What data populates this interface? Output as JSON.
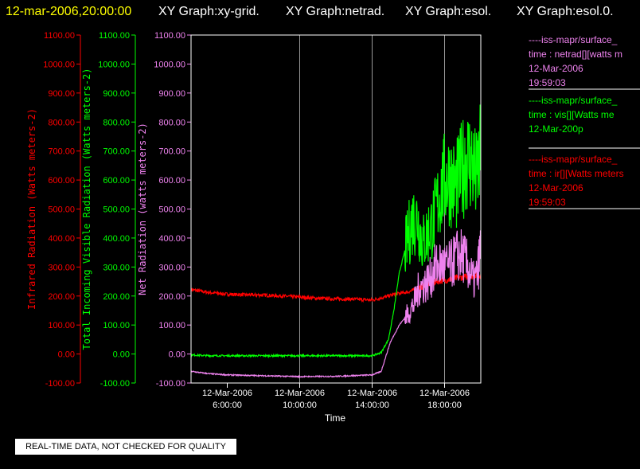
{
  "header": {
    "timestamp": "12-mar-2006,20:00:00",
    "graph_titles": [
      "XY Graph:xy-grid.",
      "XY Graph:netrad.",
      "XY Graph:esol.",
      "XY Graph:esol.0."
    ]
  },
  "colors": {
    "background": "#000000",
    "axis_frame": "#ffffff",
    "grid": "#9a9a9a",
    "ir": "#ff0000",
    "vis": "#00ff00",
    "net": "#ee82ee",
    "timestamp": "#ffff00"
  },
  "legend": [
    {
      "lines": [
        "----iss-mapr/surface_",
        "time : netrad[][watts m",
        "12-Mar-2006",
        "19:59:03"
      ],
      "color": "#ee82ee"
    },
    {
      "lines": [
        "----iss-mapr/surface_",
        "time : vis[][Watts me",
        "12-Mar-200p"
      ],
      "color": "#00ff00"
    },
    {
      "lines": [
        "----iss-mapr/surface_",
        "time : ir[][Watts meters",
        "12-Mar-2006",
        "19:59:03"
      ],
      "color": "#ff0000"
    }
  ],
  "badge": "REAL-TIME DATA, NOT CHECKED FOR QUALITY",
  "chart_data": {
    "type": "line",
    "xlabel": "Time",
    "xlim": [
      4,
      20
    ],
    "ylim": [
      -100,
      1100
    ],
    "y_ticks": [
      -100,
      0,
      100,
      200,
      300,
      400,
      500,
      600,
      700,
      800,
      900,
      1000,
      1100
    ],
    "y_tick_labels": [
      "-100.00",
      "0.00",
      "100.00",
      "200.00",
      "300.00",
      "400.00",
      "500.00",
      "600.00",
      "700.00",
      "800.00",
      "900.00",
      "1000.00",
      "1100.00"
    ],
    "x_ticks": [
      {
        "x": 6,
        "date": "12-Mar-2006",
        "time": "6:00:00"
      },
      {
        "x": 10,
        "date": "12-Mar-2006",
        "time": "10:00:00"
      },
      {
        "x": 14,
        "date": "12-Mar-2006",
        "time": "14:00:00"
      },
      {
        "x": 18,
        "date": "12-Mar-2006",
        "time": "18:00:00"
      }
    ],
    "grid_x": [
      10,
      14,
      18
    ],
    "y_axes": [
      {
        "label": "Infrared Radiation (Watts meters-2)",
        "color": "#ff0000"
      },
      {
        "label": "Total Incoming Visible Radiation (Watts meters-2)",
        "color": "#00ff00"
      },
      {
        "label": "Net Radiation (watts meters-2)",
        "color": "#ee82ee"
      }
    ],
    "series": [
      {
        "color": "#ff0000",
        "noise": 6,
        "points": [
          [
            4,
            222
          ],
          [
            5,
            212
          ],
          [
            6,
            206
          ],
          [
            7,
            204
          ],
          [
            8,
            203
          ],
          [
            9,
            200
          ],
          [
            10,
            196
          ],
          [
            11,
            192
          ],
          [
            12,
            190
          ],
          [
            13,
            189
          ],
          [
            14,
            186
          ],
          [
            14.6,
            195
          ],
          [
            15.3,
            207
          ],
          [
            16,
            214
          ],
          [
            16.5,
            225
          ],
          [
            17,
            240
          ],
          [
            17.5,
            250
          ],
          [
            18,
            255
          ],
          [
            18.5,
            260
          ],
          [
            19,
            265
          ],
          [
            19.5,
            268
          ],
          [
            20,
            272
          ]
        ]
      },
      {
        "color": "#00ff00",
        "noise": 3,
        "points": [
          [
            4,
            -3
          ],
          [
            5,
            -6
          ],
          [
            6,
            -6
          ],
          [
            8,
            -6
          ],
          [
            10,
            -6
          ],
          [
            12,
            -6
          ],
          [
            14,
            -6
          ],
          [
            14.5,
            5
          ],
          [
            14.9,
            50
          ],
          [
            15.2,
            150
          ],
          [
            15.5,
            280
          ],
          [
            15.9,
            380
          ],
          [
            16.2,
            460
          ],
          [
            16.5,
            470
          ],
          [
            16.8,
            380
          ],
          [
            17.1,
            420
          ],
          [
            17.4,
            460
          ],
          [
            17.7,
            540
          ],
          [
            18,
            600
          ],
          [
            18.3,
            610
          ],
          [
            18.6,
            570
          ],
          [
            18.9,
            620
          ],
          [
            19.2,
            680
          ],
          [
            19.5,
            660
          ],
          [
            19.75,
            600
          ],
          [
            20,
            690
          ]
        ]
      },
      {
        "color": "#ee82ee",
        "noise": 2,
        "points": [
          [
            4,
            -60
          ],
          [
            5,
            -68
          ],
          [
            6,
            -72
          ],
          [
            8,
            -75
          ],
          [
            10,
            -78
          ],
          [
            12,
            -77
          ],
          [
            14,
            -72
          ],
          [
            14.5,
            -60
          ],
          [
            15,
            40
          ],
          [
            15.5,
            100
          ],
          [
            16,
            140
          ],
          [
            16.3,
            170
          ],
          [
            16.6,
            230
          ],
          [
            16.9,
            240
          ],
          [
            17.2,
            260
          ],
          [
            17.5,
            300
          ],
          [
            17.8,
            310
          ],
          [
            18.1,
            300
          ],
          [
            18.4,
            310
          ],
          [
            18.7,
            340
          ],
          [
            19,
            340
          ],
          [
            19.3,
            300
          ],
          [
            19.6,
            250
          ],
          [
            19.8,
            270
          ],
          [
            20,
            370
          ]
        ]
      }
    ]
  }
}
